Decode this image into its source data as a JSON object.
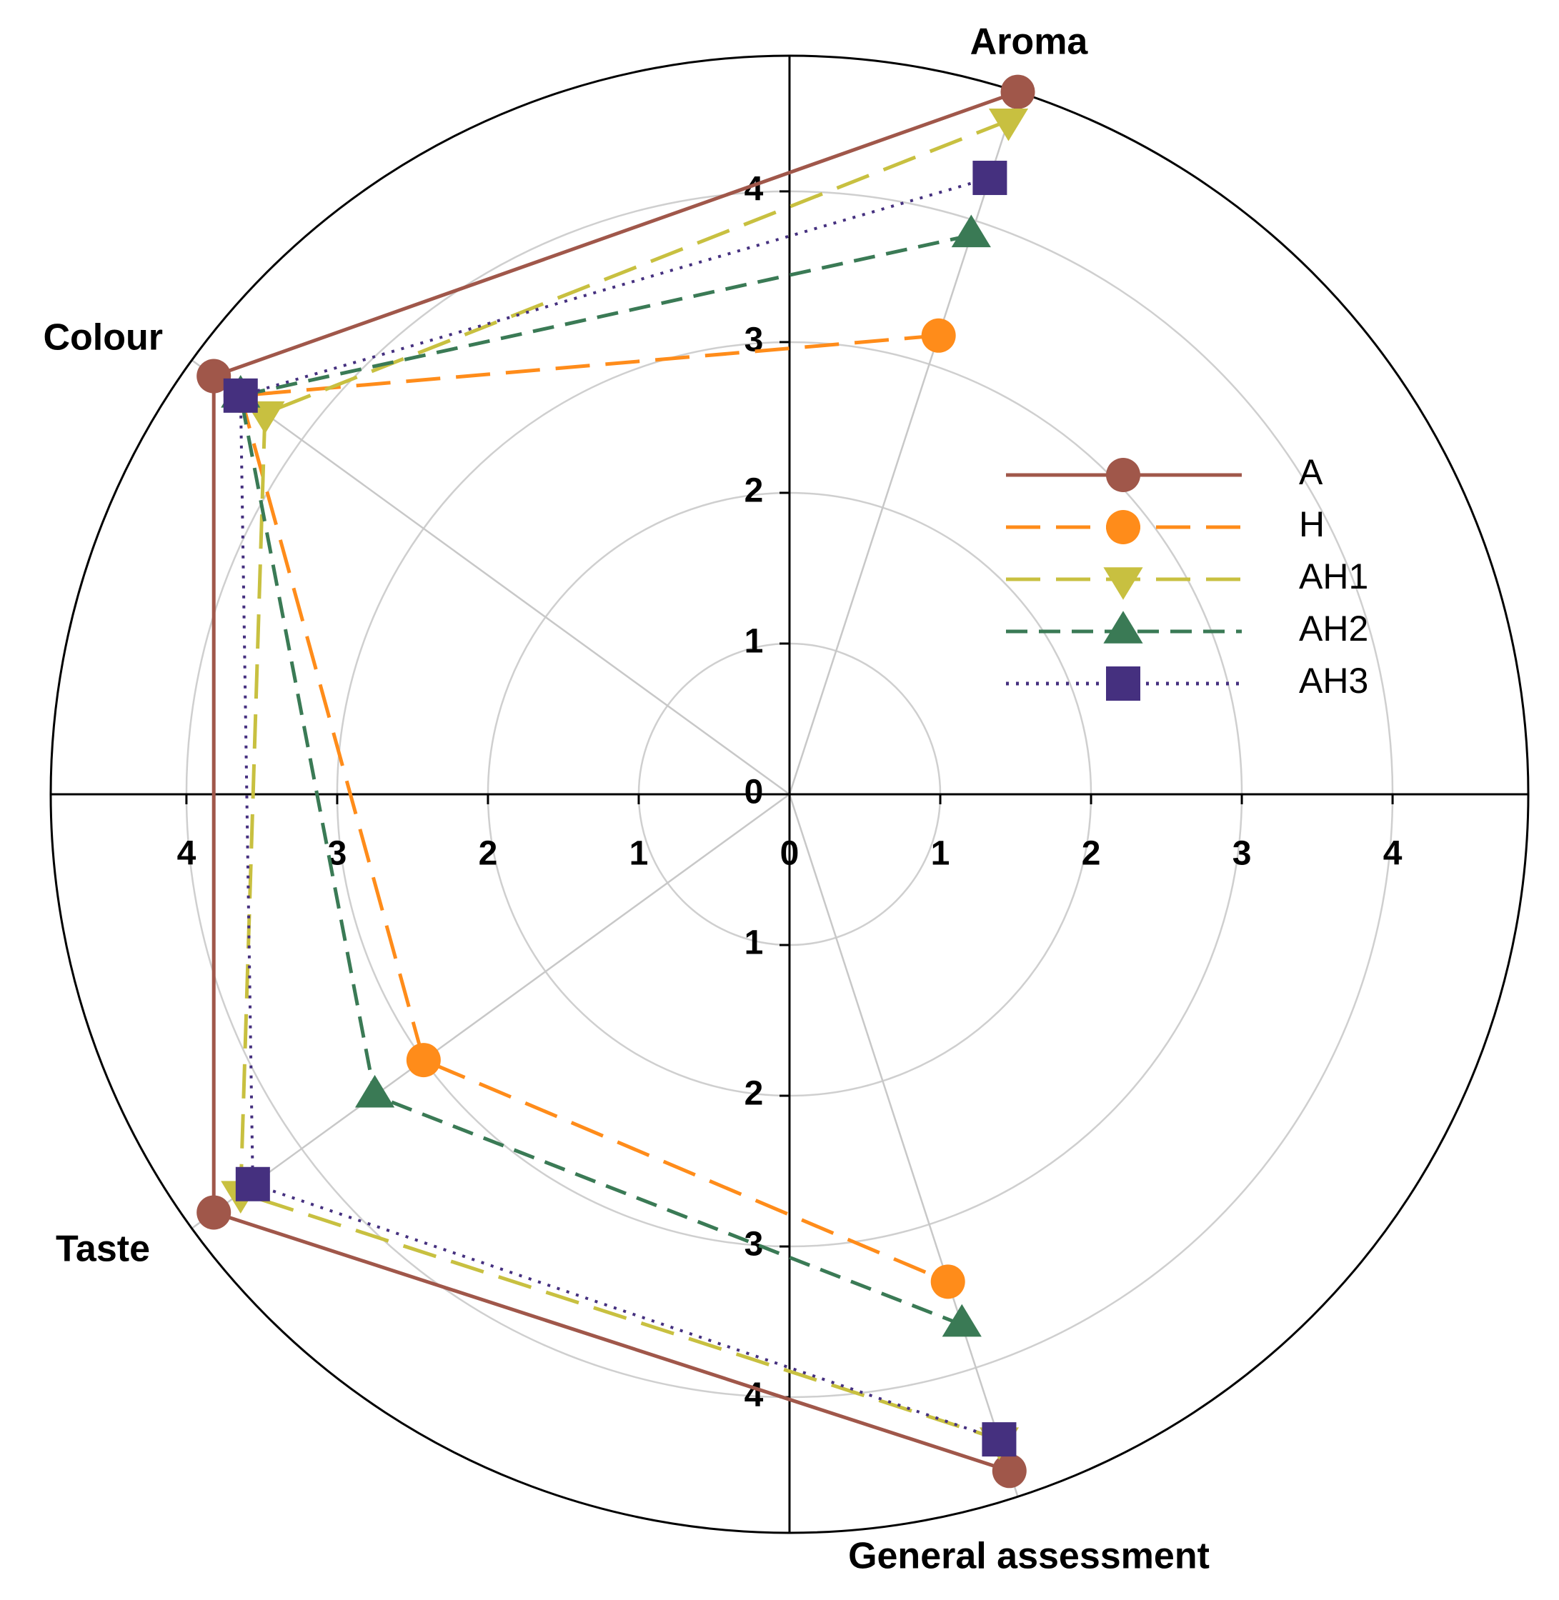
{
  "chart_data": {
    "type": "radar",
    "categories": [
      "Aroma",
      "Colour",
      "Taste",
      "General assessment"
    ],
    "rlim": [
      0,
      4.9
    ],
    "rticks": [
      0,
      1,
      2,
      3,
      4
    ],
    "grid": true,
    "legend": "upper right",
    "series": [
      {
        "name": "A",
        "color": "#a0574a",
        "marker": "circle",
        "line_style": "solid",
        "values": [
          4.9,
          4.72,
          4.72,
          4.72
        ]
      },
      {
        "name": "H",
        "color": "#ff8c1a",
        "marker": "circle",
        "line_style": "long-dash",
        "values": [
          3.2,
          4.5,
          3.0,
          3.4
        ]
      },
      {
        "name": "AH1",
        "color": "#c8c040",
        "marker": "triangle-down",
        "line_style": "long-dash",
        "values": [
          4.7,
          4.3,
          4.5,
          4.5
        ]
      },
      {
        "name": "AH2",
        "color": "#3a7a55",
        "marker": "triangle-up",
        "line_style": "dash",
        "values": [
          3.9,
          4.5,
          3.4,
          3.7
        ]
      },
      {
        "name": "AH3",
        "color": "#45307f",
        "marker": "square",
        "line_style": "dotted",
        "values": [
          4.3,
          4.5,
          4.4,
          4.5
        ]
      }
    ]
  }
}
